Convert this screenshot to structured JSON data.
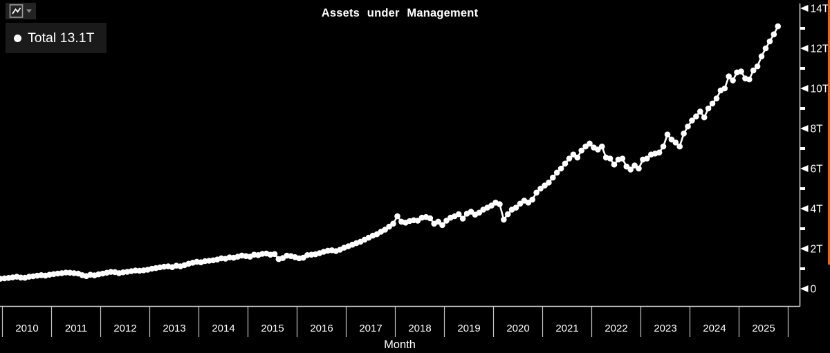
{
  "title": "Assets under Management",
  "toolbar": {
    "chart_type_icon": "line-chart",
    "dropdown_icon": "chevron-down"
  },
  "legend": {
    "marker": "●",
    "label": "Total 13.1T"
  },
  "x_axis": {
    "label": "Month",
    "years": [
      "2010",
      "2011",
      "2012",
      "2013",
      "2014",
      "2015",
      "2016",
      "2017",
      "2018",
      "2019",
      "2020",
      "2021",
      "2022",
      "2023",
      "2024",
      "2025"
    ]
  },
  "y_axis": {
    "major_tick_labels": [
      "0",
      "2T",
      "4T",
      "6T",
      "8T",
      "10T",
      "12T",
      "14T"
    ],
    "major_tick_values": [
      0,
      2,
      4,
      6,
      8,
      10,
      12,
      14
    ],
    "minor_tick_values": [
      1,
      3,
      5,
      7,
      9,
      11,
      13
    ],
    "range": [
      0,
      14
    ]
  },
  "colors": {
    "background": "#000000",
    "series": "#ffffff",
    "text": "#ffffff",
    "axis": "#d0d0d0",
    "separator": "#c4c4c4",
    "legend_bg": "#1a1a1a",
    "edge_bar": "#ee6410"
  },
  "chart_data": {
    "type": "line",
    "title": "Assets under Management",
    "xlabel": "Month",
    "ylabel": "",
    "unit": "T",
    "frequency": "monthly",
    "x_start": "2009-12",
    "ylim": [
      0,
      14
    ],
    "grid": false,
    "legend_position": "top-left",
    "marker": "circle",
    "series": [
      {
        "name": "Total",
        "last_value_label": "13.1T",
        "values": [
          0.5,
          0.52,
          0.54,
          0.57,
          0.6,
          0.56,
          0.55,
          0.6,
          0.62,
          0.65,
          0.68,
          0.66,
          0.7,
          0.73,
          0.76,
          0.78,
          0.81,
          0.8,
          0.78,
          0.76,
          0.68,
          0.63,
          0.7,
          0.67,
          0.72,
          0.76,
          0.8,
          0.84,
          0.83,
          0.78,
          0.82,
          0.85,
          0.88,
          0.91,
          0.9,
          0.92,
          0.95,
          1.0,
          1.03,
          1.07,
          1.1,
          1.12,
          1.08,
          1.15,
          1.12,
          1.18,
          1.25,
          1.3,
          1.35,
          1.32,
          1.38,
          1.4,
          1.42,
          1.46,
          1.52,
          1.5,
          1.57,
          1.55,
          1.6,
          1.66,
          1.63,
          1.6,
          1.7,
          1.68,
          1.74,
          1.76,
          1.7,
          1.73,
          1.48,
          1.53,
          1.65,
          1.63,
          1.58,
          1.52,
          1.55,
          1.68,
          1.7,
          1.72,
          1.78,
          1.85,
          1.9,
          1.92,
          1.88,
          1.95,
          2.05,
          2.12,
          2.2,
          2.28,
          2.35,
          2.45,
          2.55,
          2.65,
          2.72,
          2.85,
          2.95,
          3.1,
          3.25,
          3.62,
          3.35,
          3.3,
          3.38,
          3.42,
          3.4,
          3.55,
          3.58,
          3.52,
          3.25,
          3.35,
          3.18,
          3.4,
          3.55,
          3.62,
          3.72,
          3.5,
          3.75,
          3.85,
          3.7,
          3.8,
          3.95,
          4.05,
          4.15,
          4.3,
          4.22,
          3.45,
          3.72,
          3.95,
          4.05,
          4.25,
          4.4,
          4.3,
          4.45,
          4.8,
          5.0,
          5.15,
          5.3,
          5.55,
          5.8,
          6.0,
          6.25,
          6.5,
          6.7,
          6.55,
          6.9,
          7.1,
          7.25,
          7.05,
          6.95,
          7.1,
          6.55,
          6.5,
          6.2,
          6.45,
          6.5,
          6.1,
          5.95,
          6.15,
          6.0,
          6.45,
          6.5,
          6.7,
          6.75,
          6.8,
          7.1,
          7.7,
          7.45,
          7.3,
          7.1,
          7.75,
          8.1,
          8.4,
          8.6,
          8.85,
          8.55,
          9.0,
          9.25,
          9.5,
          9.9,
          10.0,
          10.6,
          10.4,
          10.8,
          10.85,
          10.5,
          10.45,
          10.9,
          11.1,
          11.6,
          12.0,
          12.35,
          12.7,
          13.1
        ]
      }
    ]
  }
}
